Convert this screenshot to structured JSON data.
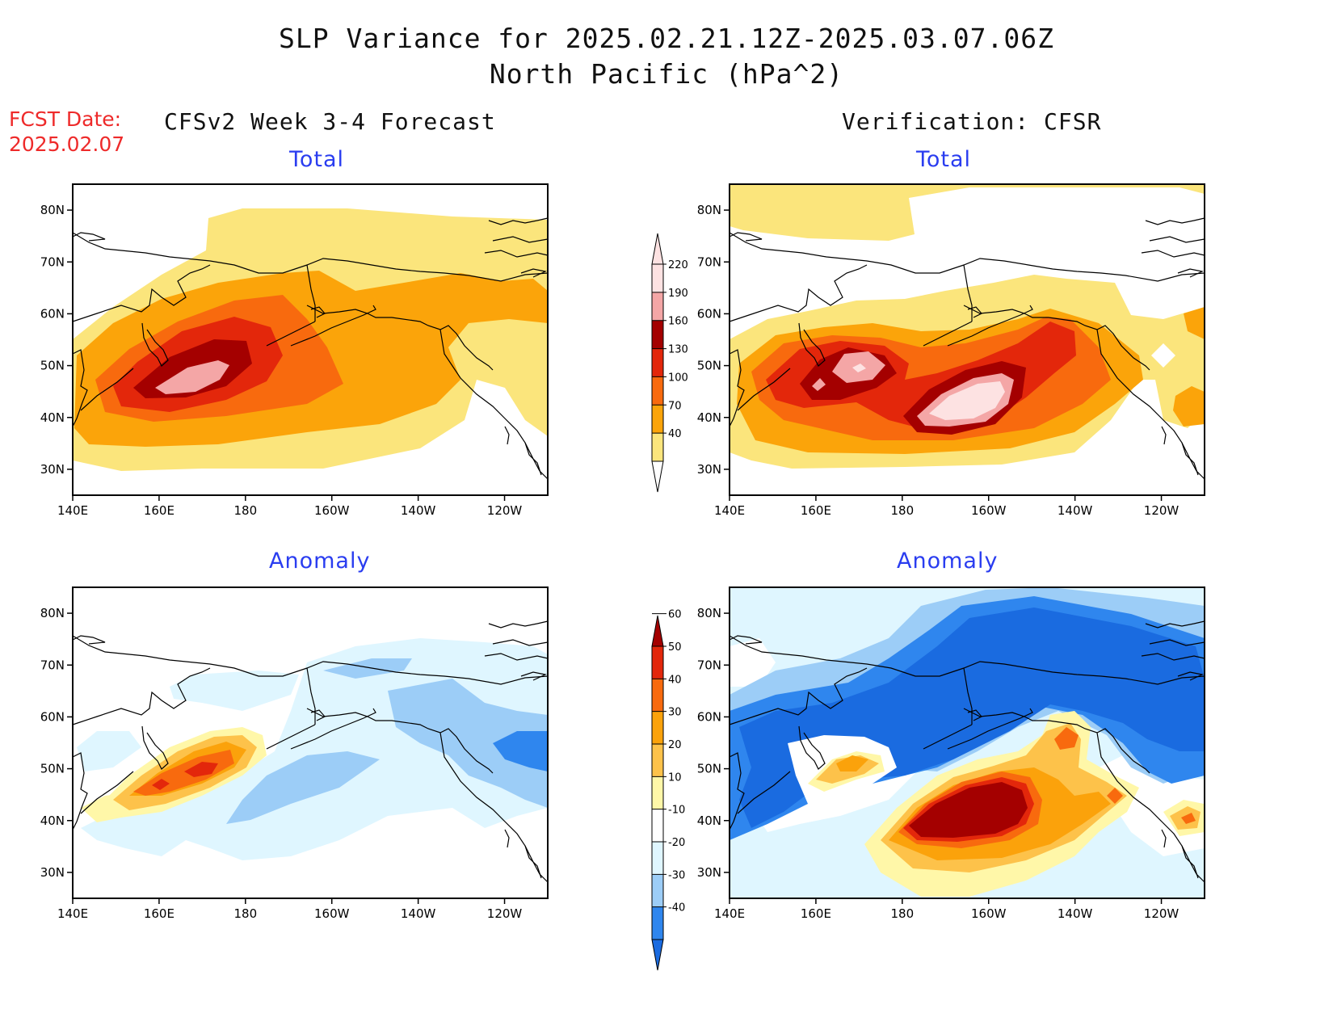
{
  "header": {
    "title_line1": "SLP Variance for 2025.02.21.12Z-2025.03.07.06Z",
    "title_line2": "North Pacific (hPa^2)",
    "fcst_label": "FCST Date:",
    "fcst_date": "2025.02.07",
    "left_column_title": "CFSv2 Week 3-4 Forecast",
    "right_column_title": "Verification: CFSR"
  },
  "panels": {
    "forecast_total": {
      "title": "Total"
    },
    "verification_total": {
      "title": "Total"
    },
    "forecast_anomaly": {
      "title": "Anomaly"
    },
    "verification_anomaly": {
      "title": "Anomaly"
    }
  },
  "axes": {
    "lon_ticks": [
      "140E",
      "160E",
      "180",
      "160W",
      "140W",
      "120W"
    ],
    "lat_ticks": [
      "80N",
      "70N",
      "60N",
      "50N",
      "40N",
      "30N"
    ],
    "lon_range": [
      140,
      250
    ],
    "lat_range": [
      25,
      85
    ]
  },
  "colorbars": {
    "total": {
      "levels": [
        "40",
        "70",
        "100",
        "130",
        "160",
        "190",
        "220"
      ],
      "colors": [
        "#fbe57c",
        "#fba40a",
        "#f86a0e",
        "#e3270b",
        "#a40000",
        "#f4a6a6",
        "#fde2e2"
      ]
    },
    "anomaly": {
      "levels": [
        "-40",
        "-30",
        "-20",
        "-10",
        "10",
        "20",
        "30",
        "40",
        "50",
        "60"
      ],
      "colors": [
        "#1a6be0",
        "#2f86ee",
        "#9ccdf7",
        "#dff6ff",
        "#ffffff",
        "#fff7a8",
        "#fdc24a",
        "#fba20b",
        "#f86a0e",
        "#e3270b",
        "#a40000"
      ]
    }
  }
}
